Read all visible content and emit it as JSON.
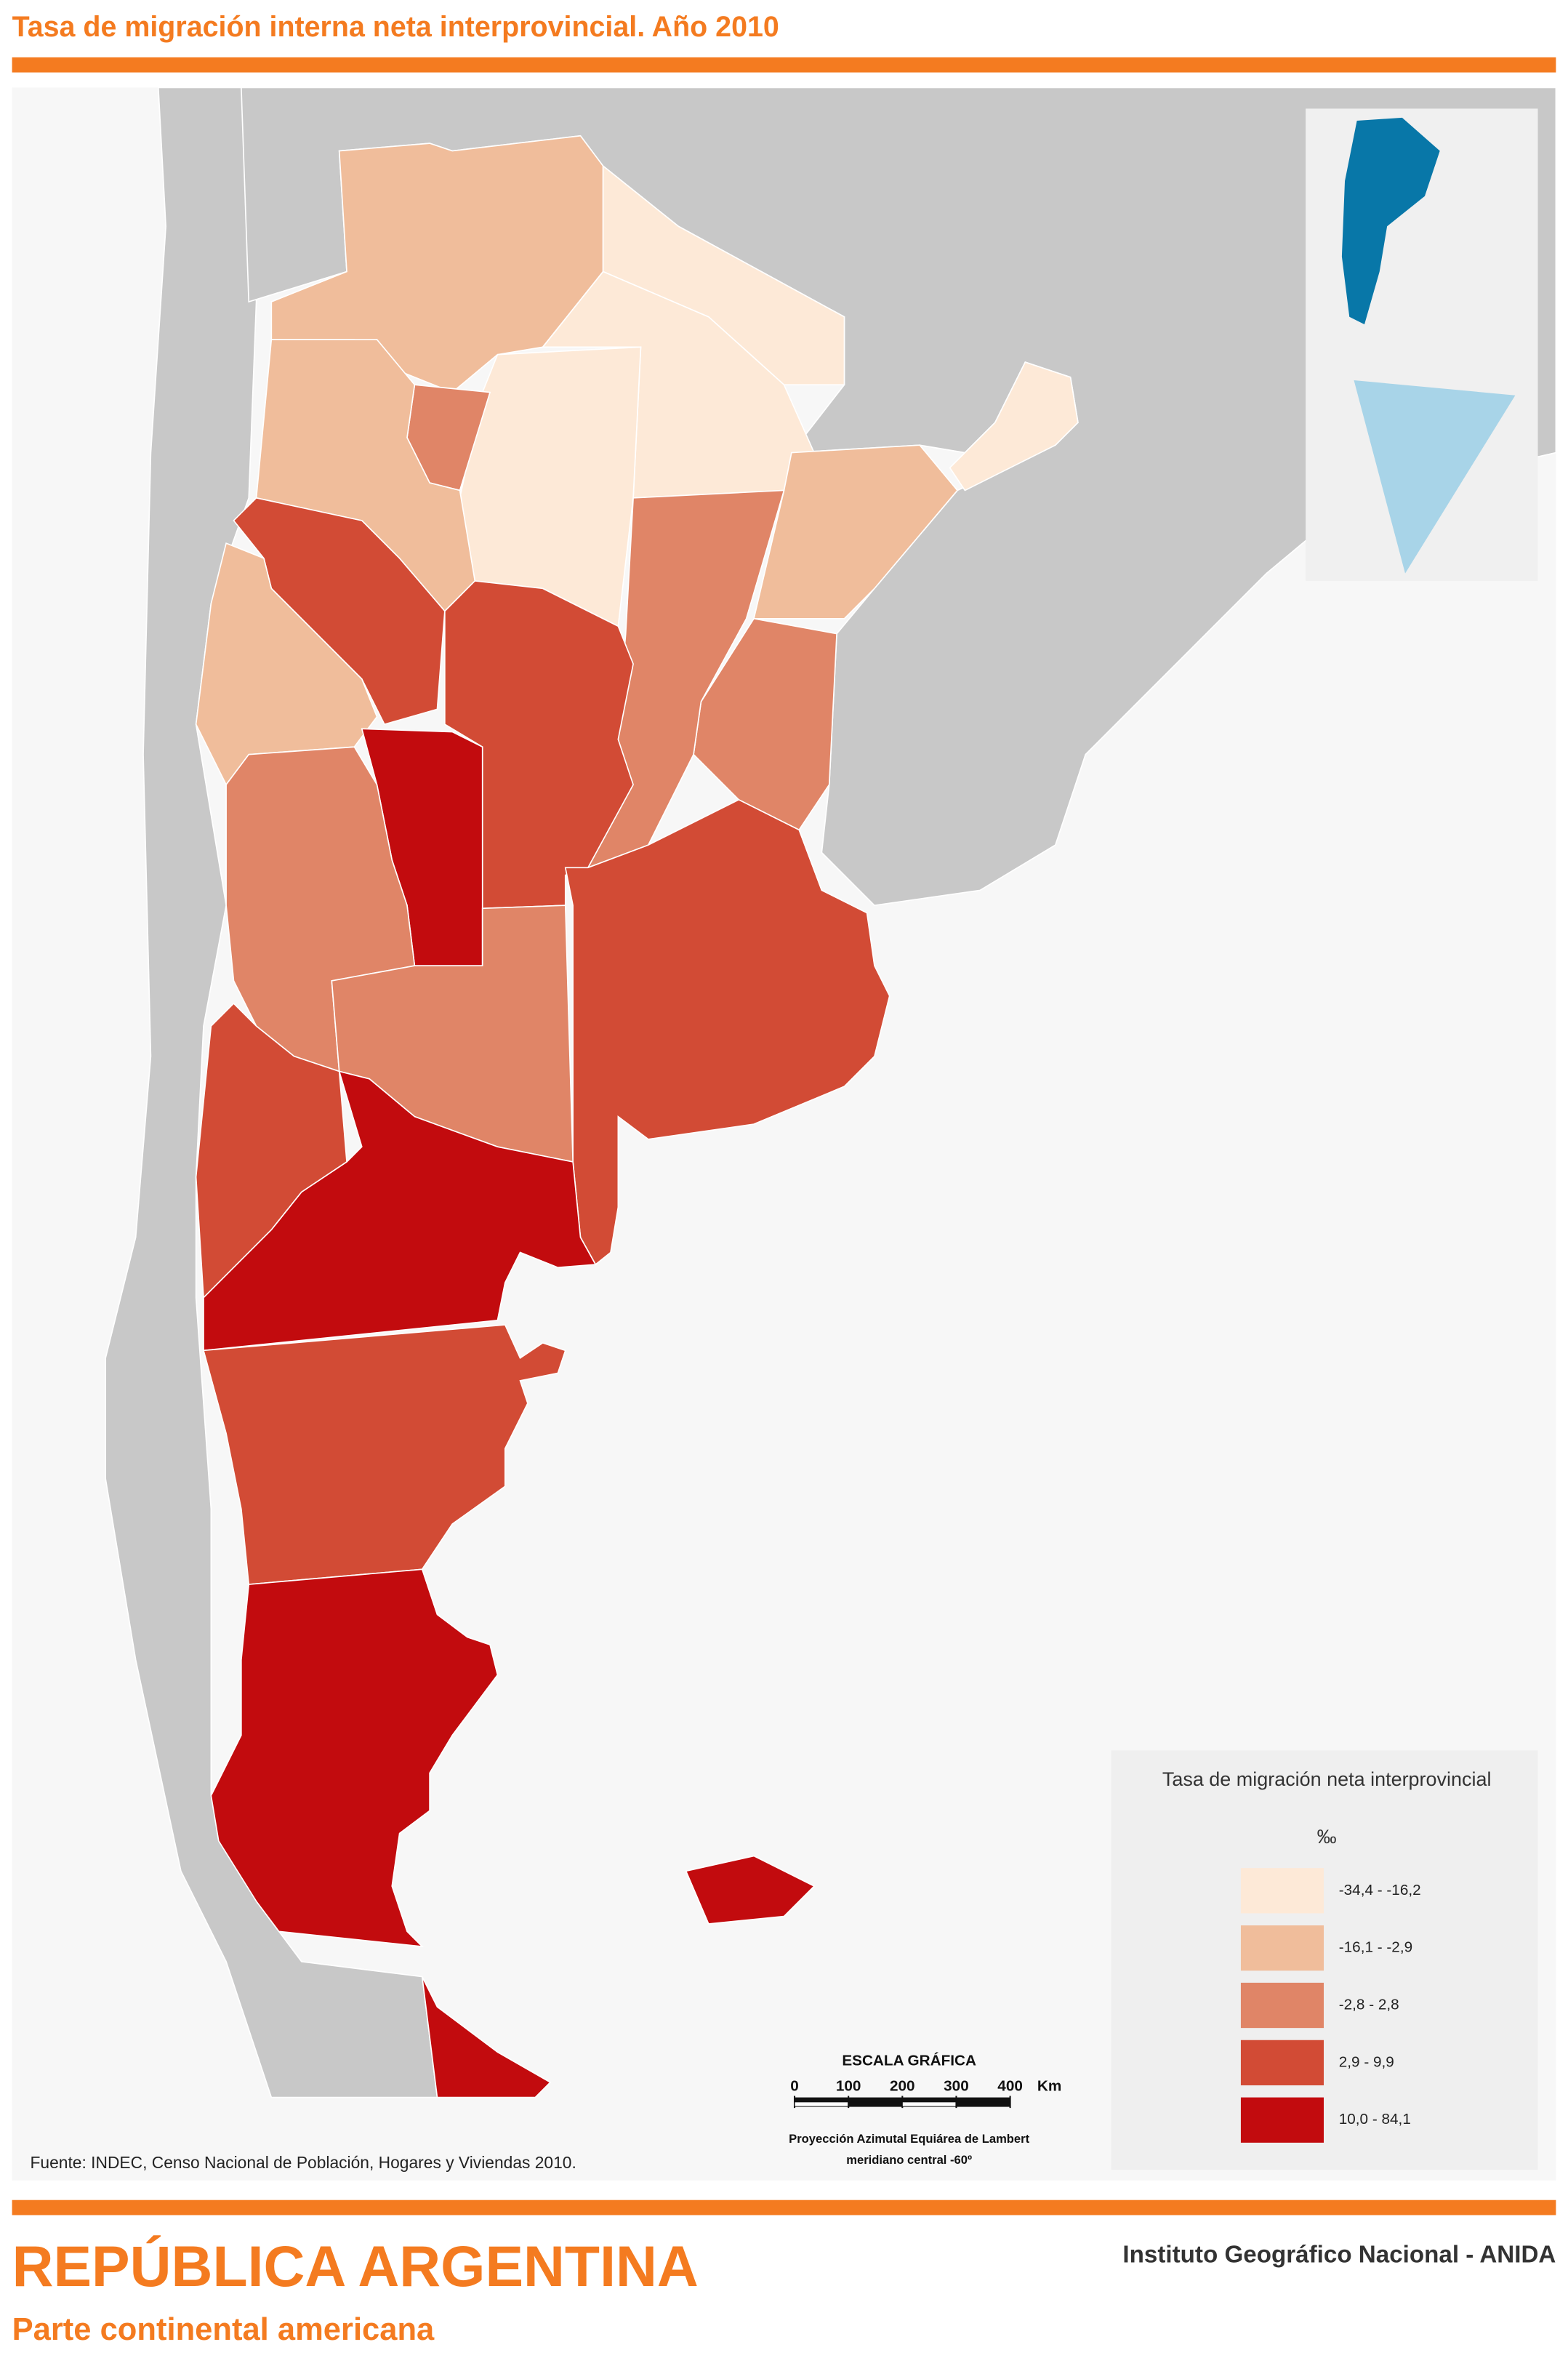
{
  "header": {
    "title": "Tasa de migración interna neta interprovincial. Año 2010"
  },
  "legend": {
    "title": "Tasa de migración neta interprovincial",
    "unit": "‰",
    "classes": [
      {
        "label": "-34,4 - -16,2",
        "color": "#fde9d7"
      },
      {
        "label": "-16,1 - -2,9",
        "color": "#f0bd9b"
      },
      {
        "label": "-2,8 - 2,8",
        "color": "#e08567"
      },
      {
        "label": "2,9 - 9,9",
        "color": "#d24b35"
      },
      {
        "label": "10,0 - 84,1",
        "color": "#c20b0e"
      }
    ]
  },
  "scale": {
    "title": "ESCALA GRÁFICA",
    "ticks": [
      0,
      100,
      200,
      300,
      400
    ],
    "unit": "Km",
    "projection": [
      "Proyección Azimutal Equiárea de Lambert",
      "meridiano central -60º"
    ]
  },
  "source": "Fuente: INDEC, Censo Nacional de Población, Hogares y Viviendas 2010.",
  "footer": {
    "title": "REPÚBLICA ARGENTINA",
    "subtitle": "Parte continental americana",
    "institution": "Instituto Geográfico Nacional - ANIDA"
  }
}
